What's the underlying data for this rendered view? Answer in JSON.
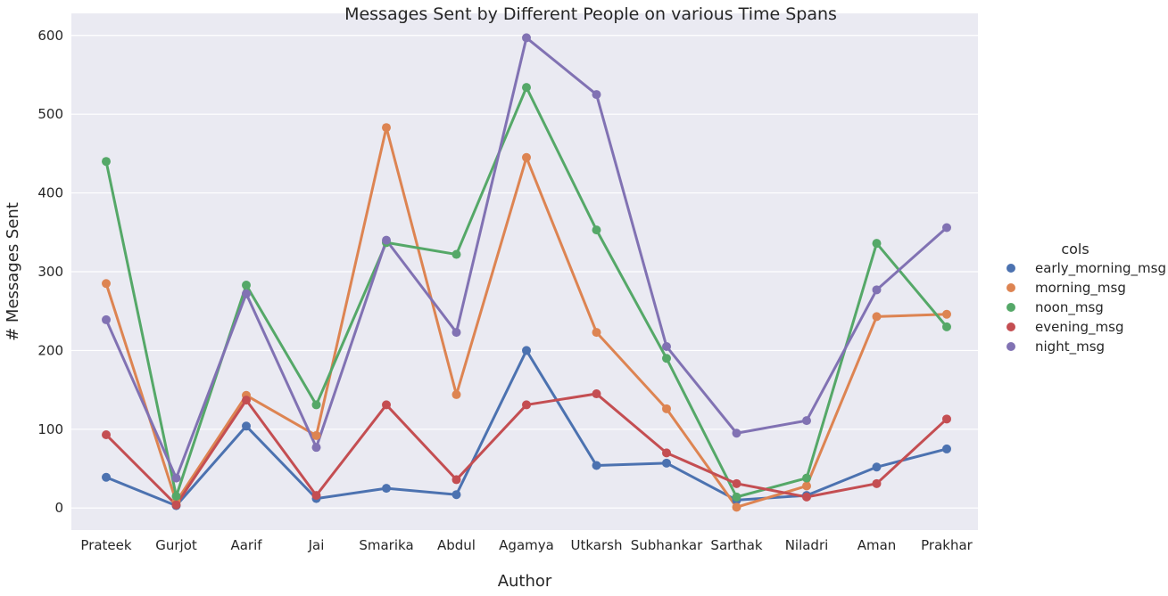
{
  "chart_data": {
    "type": "line",
    "title": "Messages Sent by Different People on various Time Spans",
    "xlabel": "Author",
    "ylabel": "# Messages Sent",
    "categories": [
      "Prateek",
      "Gurjot",
      "Aarif",
      "Jai",
      "Smarika",
      "Abdul",
      "Agamya",
      "Utkarsh",
      "Subhankar",
      "Sarthak",
      "Niladri",
      "Aman",
      "Prakhar"
    ],
    "ylim": [
      -28,
      628
    ],
    "yticks": [
      0,
      100,
      200,
      300,
      400,
      500,
      600
    ],
    "grid": true,
    "legend_title": "cols",
    "legend_position": "right",
    "series": [
      {
        "name": "early_morning_msg",
        "color": "#4c72b0",
        "values": [
          39,
          3,
          104,
          12,
          25,
          17,
          200,
          54,
          57,
          10,
          16,
          52,
          75
        ]
      },
      {
        "name": "morning_msg",
        "color": "#dd8452",
        "values": [
          285,
          8,
          143,
          92,
          483,
          144,
          445,
          223,
          126,
          1,
          28,
          243,
          246
        ]
      },
      {
        "name": "noon_msg",
        "color": "#55a868",
        "values": [
          440,
          15,
          283,
          131,
          337,
          322,
          534,
          353,
          190,
          14,
          38,
          336,
          230
        ]
      },
      {
        "name": "evening_msg",
        "color": "#c44e52",
        "values": [
          93,
          4,
          137,
          16,
          131,
          36,
          131,
          145,
          70,
          31,
          14,
          31,
          113
        ]
      },
      {
        "name": "night_msg",
        "color": "#8172b3",
        "values": [
          239,
          38,
          272,
          77,
          340,
          223,
          597,
          525,
          205,
          95,
          111,
          277,
          356
        ]
      }
    ]
  }
}
